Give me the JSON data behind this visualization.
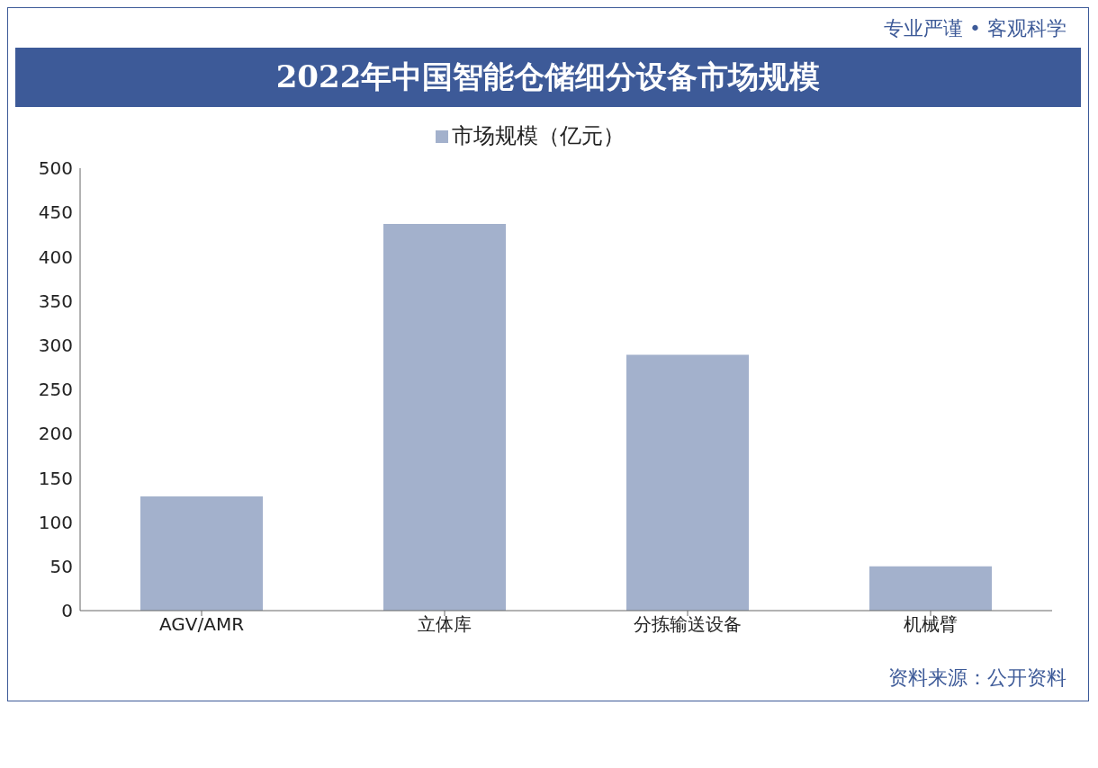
{
  "chart_data": {
    "type": "bar",
    "title": "2022年中国智能仓储细分设备市场规模",
    "subtitle": "专业严谨 • 客观科学",
    "categories": [
      "AGV/AMR",
      "立体库",
      "分拣输送设备",
      "机械臂"
    ],
    "series": [
      {
        "name": "市场规模（亿元）",
        "color": "#a3b1cc",
        "values": [
          129,
          437,
          289,
          50
        ]
      }
    ],
    "ylim": [
      0,
      500
    ],
    "yticks": [
      0,
      50,
      100,
      150,
      200,
      250,
      300,
      350,
      400,
      450,
      500
    ],
    "grid": false,
    "legend": "top",
    "annotations": [
      "资料来源：公开资料"
    ]
  }
}
